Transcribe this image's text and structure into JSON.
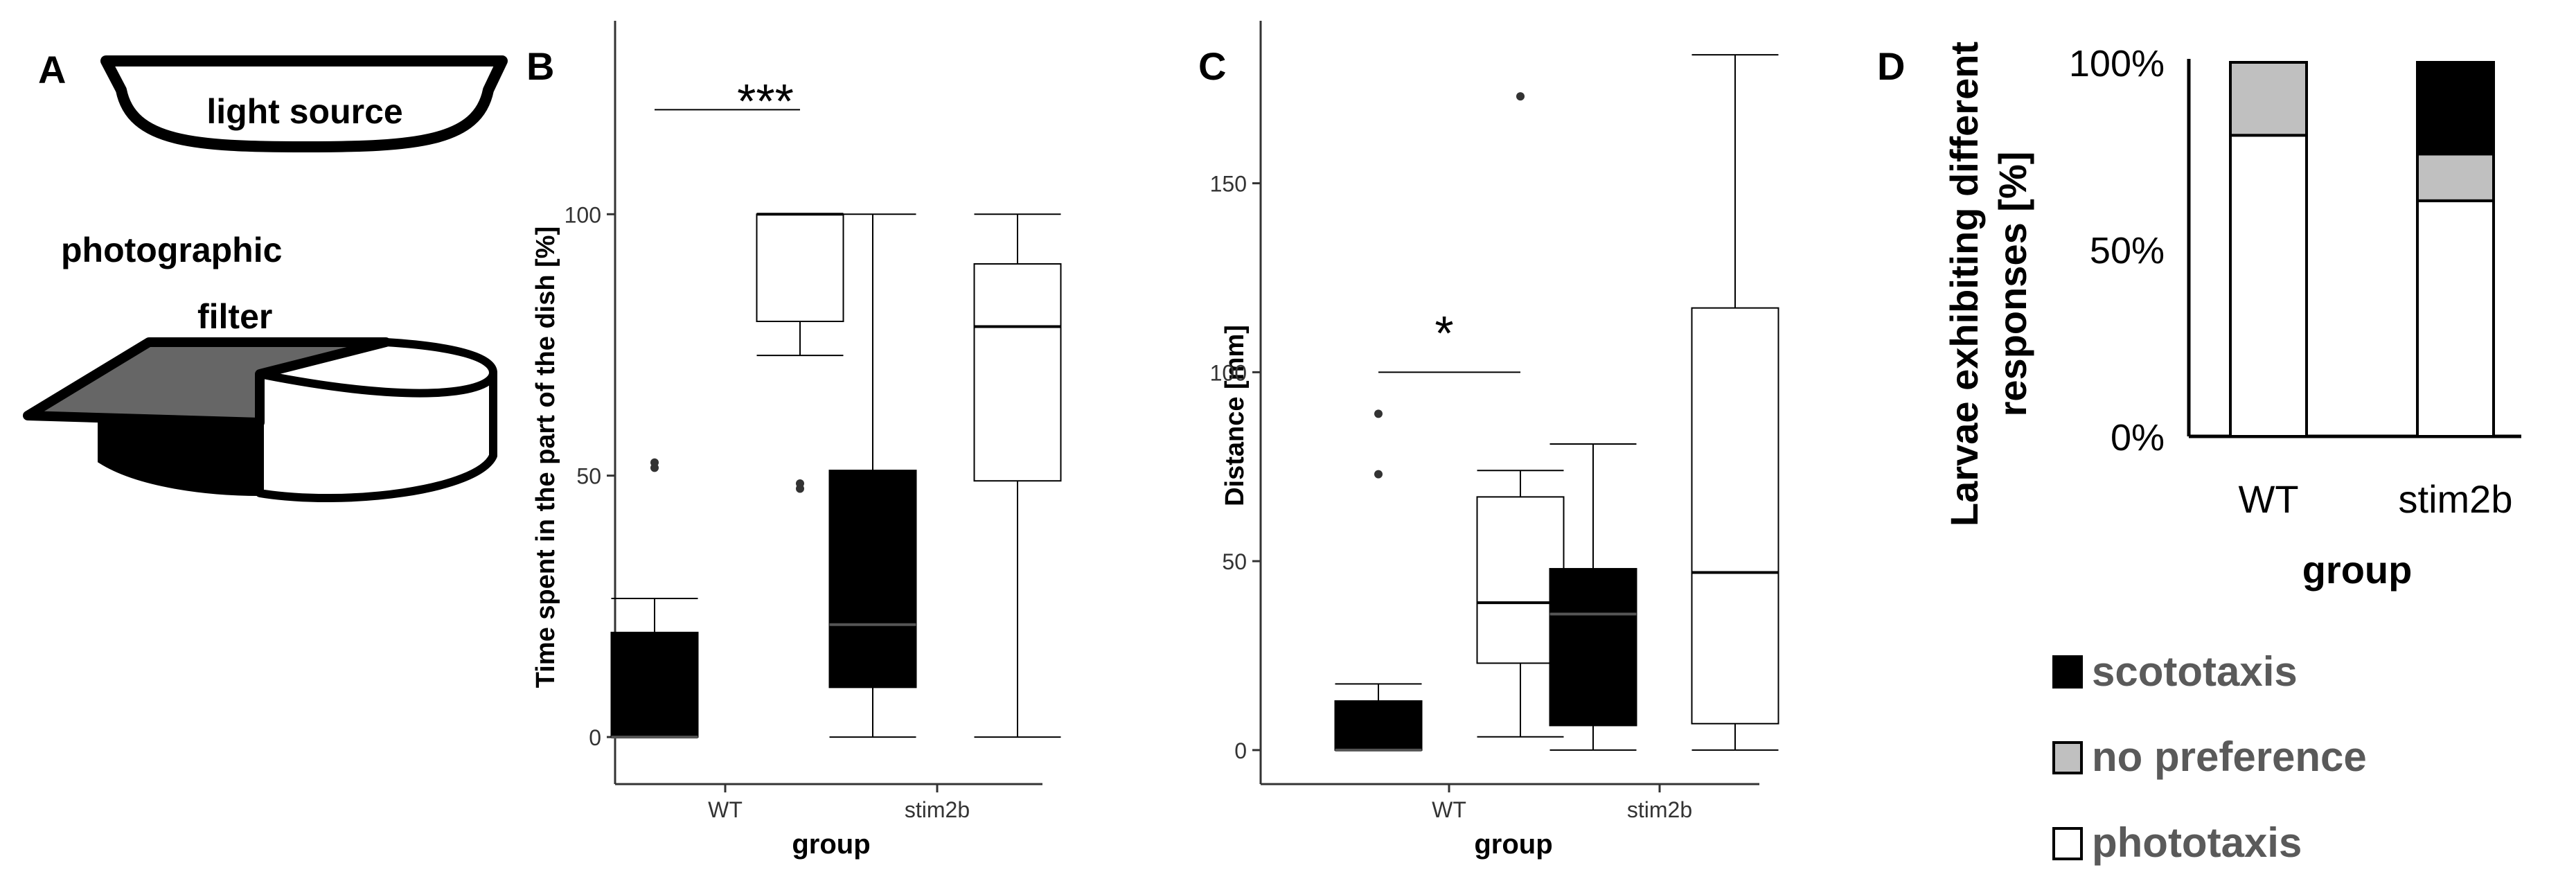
{
  "panelA": {
    "letter": "A",
    "light_source_label": "light source",
    "filter_label_line1": "photographic",
    "filter_label_line2": "filter"
  },
  "colors": {
    "wt_dark": "#000000",
    "light": "#ffffff",
    "filter_gray": "#666666",
    "no_pref_gray": "#c0c0c0",
    "axis": "#333333",
    "point": "#333333"
  },
  "chart_data": [
    {
      "id": "B",
      "letter": "B",
      "type": "box",
      "ylabel": "Time spent in the part of the dish [%]",
      "xlabel": "group",
      "ylim": [
        -9,
        137
      ],
      "yticks": [
        0,
        50,
        100
      ],
      "categories": [
        "WT",
        "stim2b"
      ],
      "boxes": [
        {
          "group": "WT",
          "fill": "dark",
          "min": 0,
          "q1": 0,
          "median": 0,
          "q3": 20,
          "max": 26.5,
          "outliers": [
            51.5,
            52.5
          ]
        },
        {
          "group": "WT",
          "fill": "light",
          "min": 73,
          "q1": 79.5,
          "median": 100,
          "q3": 100,
          "max": 100,
          "outliers": [
            47.5,
            48.5
          ]
        },
        {
          "group": "stim2b",
          "fill": "dark",
          "min": 0,
          "q1": 9.5,
          "median": 21.5,
          "q3": 51,
          "max": 100,
          "outliers": []
        },
        {
          "group": "stim2b",
          "fill": "light",
          "min": 0,
          "q1": 49,
          "median": 78.5,
          "q3": 90.5,
          "max": 100,
          "outliers": []
        }
      ],
      "annotations": [
        {
          "text": "***",
          "y": 120
        }
      ]
    },
    {
      "id": "C",
      "letter": "C",
      "type": "box",
      "ylabel": "Distance [mm]",
      "xlabel": "group",
      "ylim": [
        -9,
        193
      ],
      "yticks": [
        0,
        50,
        100,
        150
      ],
      "categories": [
        "WT",
        "stim2b"
      ],
      "boxes": [
        {
          "group": "WT",
          "fill": "dark",
          "min": 0,
          "q1": 0,
          "median": 0,
          "q3": 13,
          "max": 17.5,
          "outliers": [
            73,
            89
          ]
        },
        {
          "group": "WT",
          "fill": "light",
          "min": 3.5,
          "q1": 23,
          "median": 39,
          "q3": 67,
          "max": 74,
          "outliers": [
            173
          ]
        },
        {
          "group": "stim2b",
          "fill": "dark",
          "min": 0,
          "q1": 6.5,
          "median": 36,
          "q3": 48,
          "max": 81,
          "outliers": []
        },
        {
          "group": "stim2b",
          "fill": "light",
          "min": 0,
          "q1": 7,
          "median": 47,
          "q3": 117,
          "max": 184,
          "outliers": []
        }
      ],
      "annotations": [
        {
          "text": "*",
          "y": 100
        }
      ]
    },
    {
      "id": "D",
      "letter": "D",
      "type": "stacked-bar",
      "ylabel_line1": "Larvae exhibiting different",
      "ylabel_line2": "responses [%]",
      "xlabel": "group",
      "ylim": [
        0,
        100
      ],
      "yticks": [
        "0%",
        "50%",
        "100%"
      ],
      "categories": [
        "WT",
        "stim2b"
      ],
      "series": [
        {
          "name": "phototaxis",
          "fill": "light",
          "values": [
            80.5,
            63
          ]
        },
        {
          "name": "no preference",
          "fill": "gray",
          "values": [
            19.5,
            12.5
          ]
        },
        {
          "name": "scototaxis",
          "fill": "dark",
          "values": [
            0,
            24.5
          ]
        }
      ],
      "legend": [
        "scototaxis",
        "no preference",
        "phototaxis"
      ]
    }
  ]
}
